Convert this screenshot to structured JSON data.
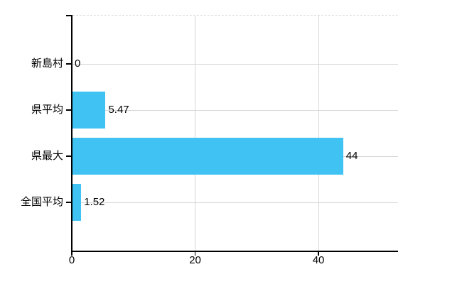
{
  "chart_data": {
    "type": "bar",
    "orientation": "horizontal",
    "title": "",
    "categories": [
      "新島村",
      "県平均",
      "県最大",
      "全国平均"
    ],
    "values": [
      0,
      5.47,
      44,
      1.52
    ],
    "value_labels": [
      "0",
      "5.47",
      "44",
      "1.52"
    ],
    "x_ticks": [
      0,
      20,
      40
    ],
    "x_tick_labels": [
      "0",
      "20",
      "40"
    ],
    "xlim": [
      0,
      52.9
    ],
    "grid": true,
    "grid_dashed_top": true,
    "legend": false,
    "colors": {
      "bar": "#40C3F3",
      "axis": "#000000",
      "grid_solid": "#d7d7d7",
      "grid_dashed": "#dcdcdc",
      "text": "#000000",
      "background": "#ffffff"
    }
  }
}
